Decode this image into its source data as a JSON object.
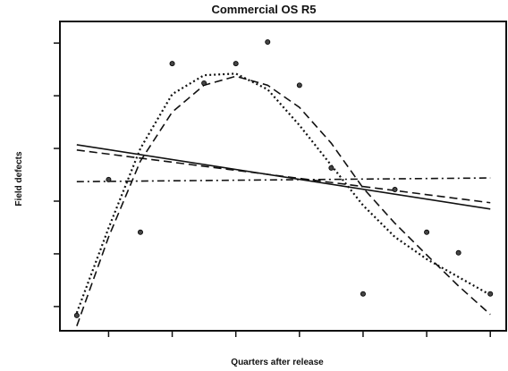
{
  "chart_data": {
    "type": "scatter",
    "title": "Commercial OS R5",
    "xlabel": "Quarters after release",
    "ylabel": "Field defects",
    "x": [
      1,
      2,
      3,
      4,
      5,
      6,
      7,
      8,
      9,
      10,
      11,
      12,
      13,
      14
    ],
    "values": [
      0.83,
      3.41,
      2.41,
      5.61,
      5.24,
      5.61,
      6.02,
      5.2,
      3.63,
      1.24,
      3.22,
      2.41,
      2.02,
      1.24
    ],
    "color": "#444444",
    "lines": [
      {
        "style": "solid",
        "x": [
          1,
          14
        ],
        "values": [
          4.07,
          2.85
        ]
      },
      {
        "style": "dashed",
        "x": [
          1,
          14
        ],
        "values": [
          3.97,
          2.97
        ]
      },
      {
        "style": "dashdot",
        "x": [
          1,
          14
        ],
        "values": [
          3.37,
          3.44
        ]
      },
      {
        "style": "dotted",
        "x": [
          1,
          2,
          3,
          4,
          5,
          6,
          7,
          8,
          9,
          10,
          11,
          12,
          13,
          14
        ],
        "values": [
          0.88,
          2.49,
          4.0,
          5.03,
          5.39,
          5.42,
          5.12,
          4.44,
          3.68,
          2.92,
          2.32,
          1.9,
          1.56,
          1.22
        ]
      },
      {
        "style": "dashed",
        "x": [
          1,
          2,
          3,
          4,
          5,
          6,
          7,
          8,
          9,
          10,
          11,
          12,
          13,
          14
        ],
        "values": [
          0.63,
          2.32,
          3.76,
          4.69,
          5.2,
          5.37,
          5.2,
          4.78,
          4.1,
          3.25,
          2.58,
          1.98,
          1.39,
          0.85
        ]
      }
    ],
    "xlim": [
      0.47,
      14.5
    ],
    "ylim": [
      0.54,
      6.41
    ],
    "xticks": [
      2,
      4,
      6,
      8,
      10,
      12,
      14
    ],
    "yticks": [
      1,
      2,
      3,
      4,
      5,
      6
    ]
  }
}
